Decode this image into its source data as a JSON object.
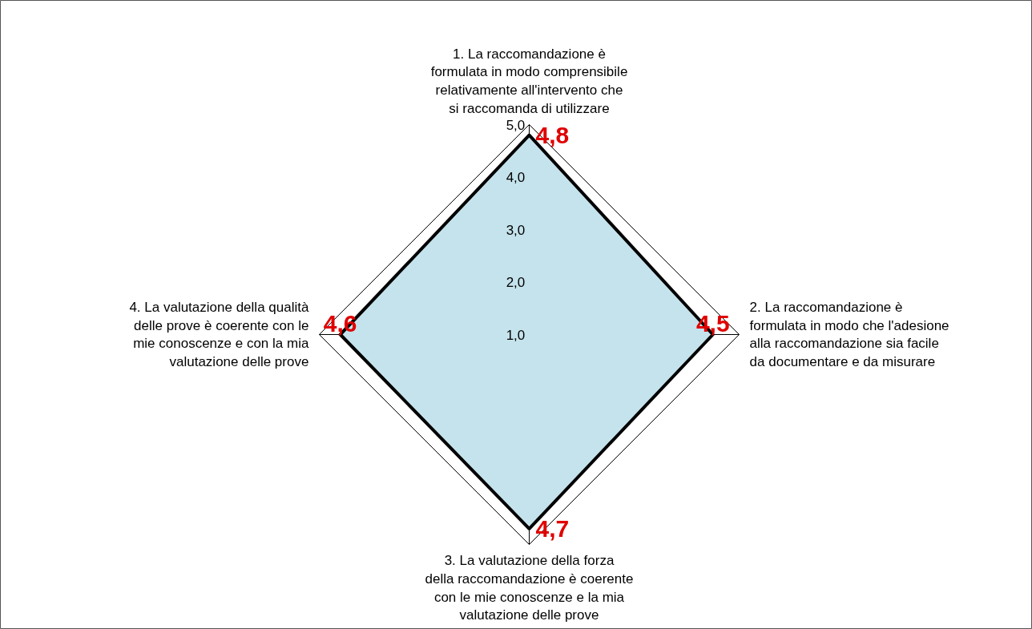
{
  "chart_data": {
    "type": "radar",
    "categories": [
      "1. La raccomandazione è formulata in modo comprensibile relativamente all'intervento che si raccomanda di utilizzare",
      "2. La raccomandazione è formulata in modo che l'adesione alla raccomandazione sia facile da documentare e da misurare",
      "3. La valutazione della forza della raccomandazione è coerente con le mie conoscenze e la mia valutazione delle prove",
      "4. La valutazione della qualità delle prove è coerente con le mie conoscenze e con la mia valutazione delle prove"
    ],
    "series": [
      {
        "color": "#c5e3ec",
        "values": [
          4.8,
          4.5,
          4.7,
          4.6
        ],
        "value_labels": [
          "4,8",
          "4,5",
          "4,7",
          "4,6"
        ]
      }
    ],
    "ylim": [
      1,
      5
    ],
    "yticks": [
      {
        "value": 1,
        "label": "1,0"
      },
      {
        "value": 2,
        "label": "2,0"
      },
      {
        "value": 3,
        "label": "3,0"
      },
      {
        "value": 4,
        "label": "4,0"
      },
      {
        "value": 5,
        "label": "5,0"
      }
    ],
    "grid": false
  }
}
